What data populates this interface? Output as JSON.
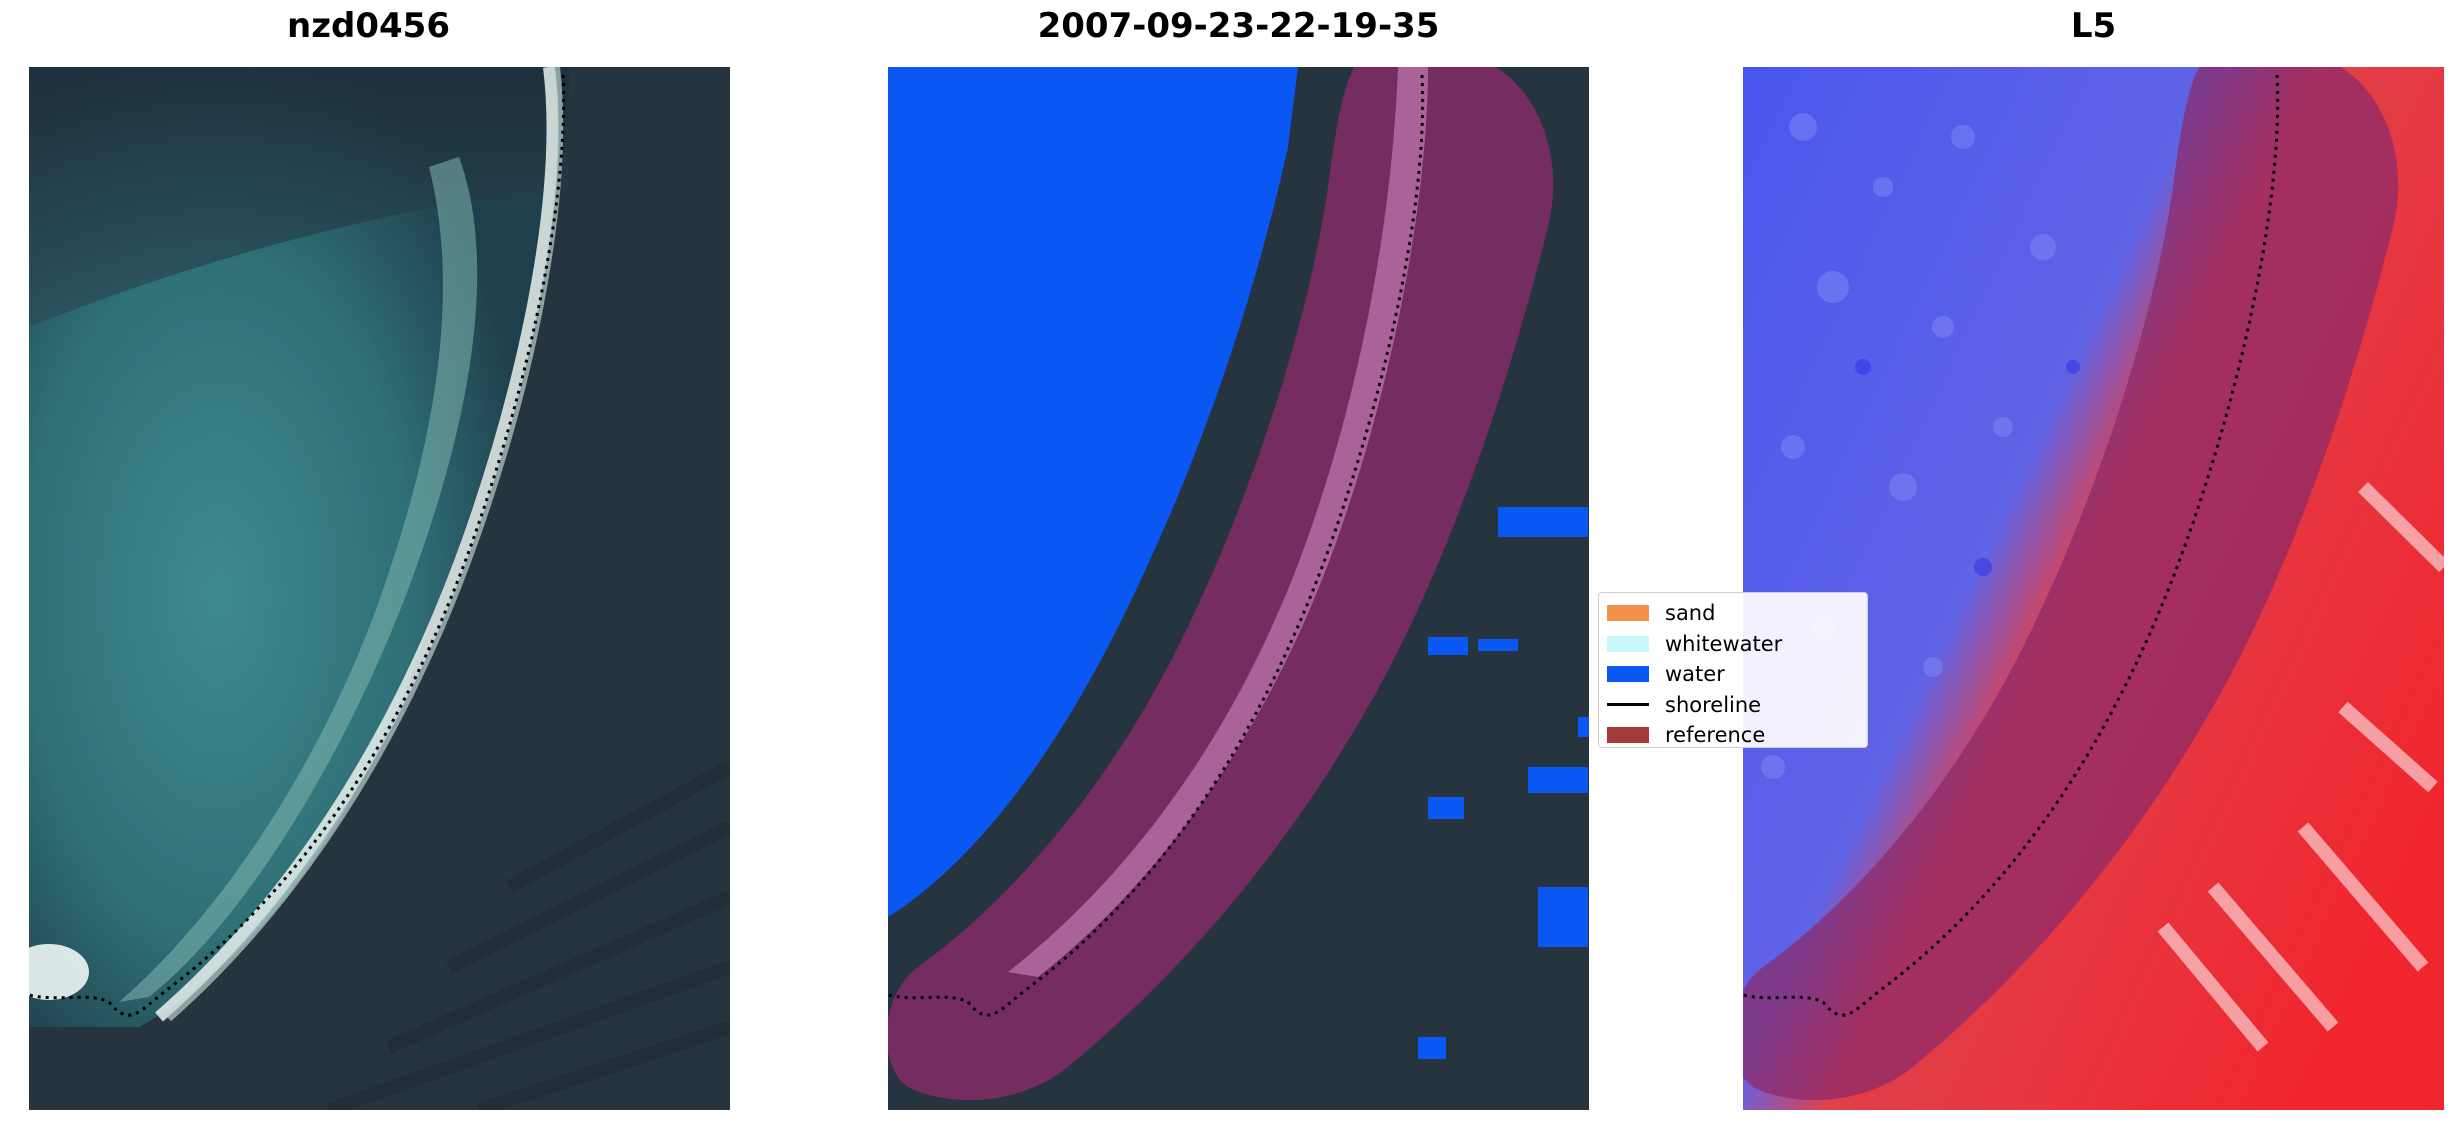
{
  "titles": {
    "panel_1": "nzd0456",
    "panel_2": "2007-09-23-22-19-35",
    "panel_3": "L5"
  },
  "legend": {
    "items": [
      {
        "label": "sand",
        "color": "#f4914a",
        "kind": "patch"
      },
      {
        "label": "whitewater",
        "color": "#c8f8f8",
        "kind": "patch"
      },
      {
        "label": "water",
        "color": "#0a57f3",
        "kind": "patch"
      },
      {
        "label": "shoreline",
        "color": "#000000",
        "kind": "line"
      },
      {
        "label": "reference",
        "color": "#a53a3a",
        "kind": "patch"
      }
    ]
  },
  "colors": {
    "dark_land": "#26343f",
    "lagoon": "#2f6f76",
    "water_class": "#0a57f3",
    "buffer_overlay": "#8b2a6a",
    "index_negative": "#3e4ff0",
    "index_positive": "#f0262e"
  }
}
